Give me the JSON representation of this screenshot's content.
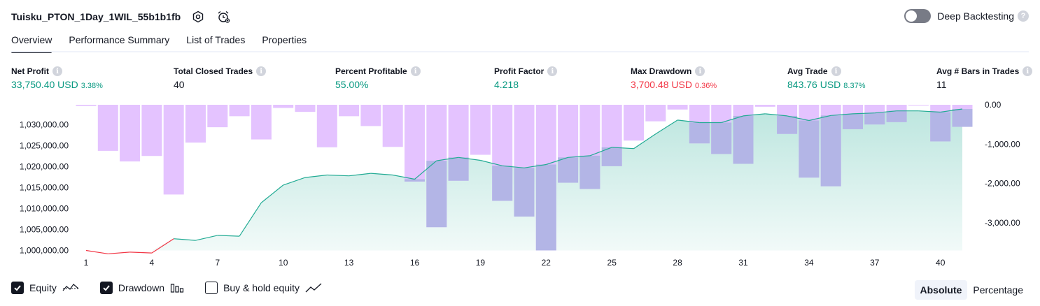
{
  "header": {
    "strategy_name": "Tuisku_PTON_1Day_1WIL_55b1b1fb",
    "deep_backtesting_label": "Deep Backtesting",
    "deep_backtesting_enabled": false
  },
  "tabs": [
    {
      "label": "Overview",
      "active": true
    },
    {
      "label": "Performance Summary",
      "active": false
    },
    {
      "label": "List of Trades",
      "active": false
    },
    {
      "label": "Properties",
      "active": false
    }
  ],
  "stats": [
    {
      "label": "Net Profit",
      "value": "33,750.40 USD",
      "pct": "3.38%",
      "color": "green"
    },
    {
      "label": "Total Closed Trades",
      "value": "40",
      "pct": "",
      "color": "plain"
    },
    {
      "label": "Percent Profitable",
      "value": "55.00%",
      "pct": "",
      "color": "green"
    },
    {
      "label": "Profit Factor",
      "value": "4.218",
      "pct": "",
      "color": "green"
    },
    {
      "label": "Max Drawdown",
      "value": "3,700.48 USD",
      "pct": "0.36%",
      "color": "red"
    },
    {
      "label": "Avg Trade",
      "value": "843.76 USD",
      "pct": "8.37%",
      "color": "green"
    },
    {
      "label": "Avg # Bars in Trades",
      "value": "11",
      "pct": "",
      "color": "plain"
    }
  ],
  "chart_data": {
    "type": "area",
    "x_ticks": [
      "1",
      "4",
      "7",
      "10",
      "13",
      "16",
      "19",
      "22",
      "25",
      "28",
      "31",
      "34",
      "37",
      "40"
    ],
    "left_axis": {
      "ticks": [
        "1,030,000.00",
        "1,025,000.00",
        "1,020,000.00",
        "1,015,000.00",
        "1,010,000.00",
        "1,005,000.00",
        "1,000,000.00"
      ],
      "ylim": [
        998000,
        1033000
      ]
    },
    "right_axis": {
      "ticks": [
        "0.00",
        "-1,000.00",
        "-2,000.00",
        "-3,000.00"
      ],
      "ylim": [
        -3750,
        0
      ]
    },
    "x": [
      1,
      2,
      3,
      4,
      5,
      6,
      7,
      8,
      9,
      10,
      11,
      12,
      13,
      14,
      15,
      16,
      17,
      18,
      19,
      20,
      21,
      22,
      23,
      24,
      25,
      26,
      27,
      28,
      29,
      30,
      31,
      32,
      33,
      34,
      35,
      36,
      37,
      38,
      39,
      40,
      41
    ],
    "series": [
      {
        "name": "Equity",
        "values": [
          1000000,
          999200,
          999600,
          999400,
          1002800,
          1002400,
          1003600,
          1003400,
          1011400,
          1015600,
          1017400,
          1018000,
          1017800,
          1018400,
          1018000,
          1017000,
          1021400,
          1022200,
          1021500,
          1020200,
          1019700,
          1020500,
          1022200,
          1022600,
          1024600,
          1024300,
          1027800,
          1031100,
          1030500,
          1030500,
          1032100,
          1032600,
          1032100,
          1031000,
          1032200,
          1032600,
          1032800,
          1033300,
          1033300,
          1033000,
          1033750
        ]
      },
      {
        "name": "Drawdown",
        "values": [
          -30,
          -1170,
          -1440,
          -1300,
          -2280,
          -960,
          -570,
          -290,
          -880,
          -80,
          -180,
          -1080,
          -290,
          -540,
          -1070,
          -1950,
          -3110,
          -1930,
          -1270,
          -2440,
          -2840,
          -3700,
          -1980,
          -2140,
          -1560,
          -910,
          -420,
          -120,
          -980,
          -1250,
          -1500,
          -50,
          -740,
          -1850,
          -2070,
          -620,
          -500,
          -440,
          -10,
          -930,
          -560
        ]
      }
    ],
    "colors": {
      "equity_line_gain": "#22ab94",
      "equity_line_loss": "#f23645",
      "equity_fill": "#22ab94",
      "drawdown_bar": "#e1bcff",
      "drawdown_overlap": "#b3b5e6"
    },
    "grid": false,
    "legend": "bottom-left"
  },
  "legend": [
    {
      "label": "Equity",
      "checked": true,
      "icon": "equity-line-icon"
    },
    {
      "label": "Drawdown",
      "checked": true,
      "icon": "drawdown-bars-icon"
    },
    {
      "label": "Buy & hold equity",
      "checked": false,
      "icon": "buyhold-line-icon"
    }
  ],
  "mode": {
    "absolute_label": "Absolute",
    "percentage_label": "Percentage",
    "selected": "Absolute"
  }
}
